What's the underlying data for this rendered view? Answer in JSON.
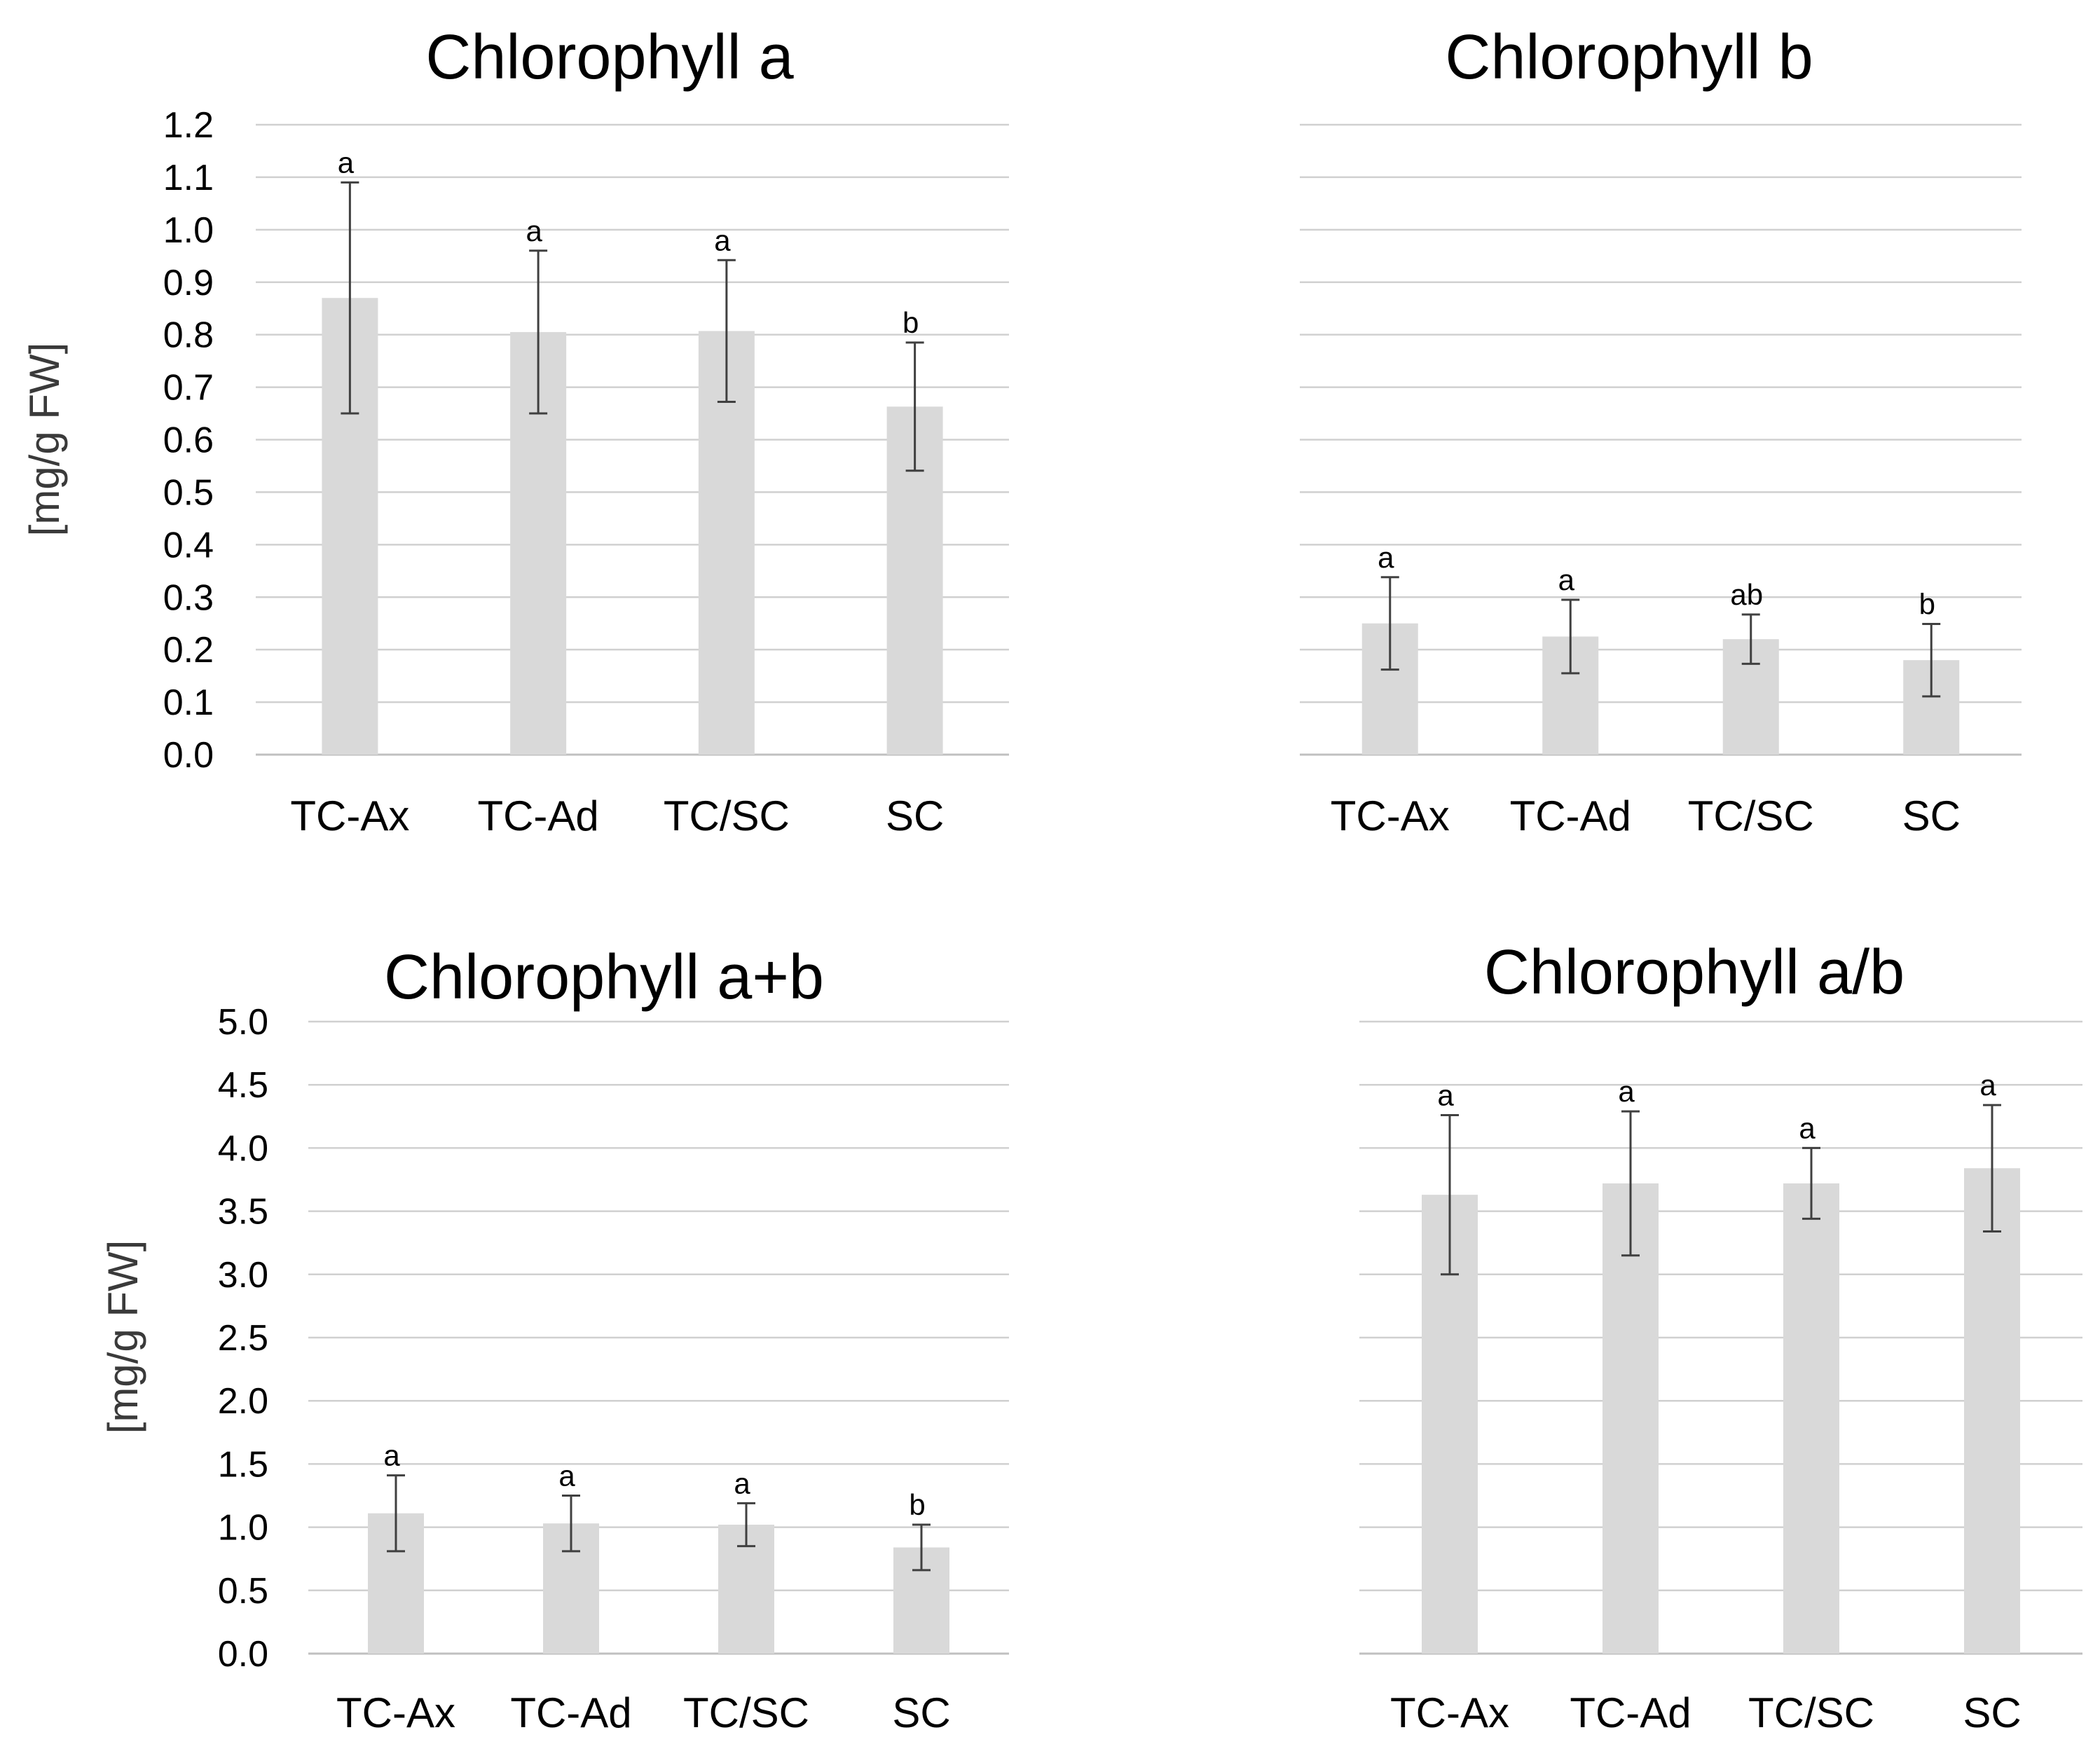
{
  "colors": {
    "bar": "#d9d9d9",
    "gridline": "#d0d0d0",
    "axis": "#c0c0c0",
    "error_bar": "#404040",
    "text": "#000000"
  },
  "chart_data": [
    {
      "id": "chl-a",
      "type": "bar",
      "title": "Chlorophyll a",
      "ylabel": "[mg/g FW]",
      "ylim": [
        0,
        1.2
      ],
      "ticks": [
        "0.0",
        "0.1",
        "0.2",
        "0.3",
        "0.4",
        "0.5",
        "0.6",
        "0.7",
        "0.8",
        "0.9",
        "1.0",
        "1.1",
        "1.2"
      ],
      "tick_values": [
        0,
        0.1,
        0.2,
        0.3,
        0.4,
        0.5,
        0.6,
        0.7,
        0.8,
        0.9,
        1.0,
        1.1,
        1.2
      ],
      "categories": [
        "TC-Ax",
        "TC-Ad",
        "TC/SC",
        "SC"
      ],
      "values": [
        0.87,
        0.805,
        0.807,
        0.663
      ],
      "errors": [
        0.22,
        0.155,
        0.135,
        0.122
      ],
      "significance": [
        "a",
        "a",
        "a",
        "b"
      ]
    },
    {
      "id": "chl-b",
      "type": "bar",
      "title": "Chlorophyll b",
      "ylabel": "",
      "ylim": [
        0,
        1.2
      ],
      "ticks": [],
      "tick_values": [
        0,
        0.1,
        0.2,
        0.3,
        0.4,
        0.5,
        0.6,
        0.7,
        0.8,
        0.9,
        1.0,
        1.1,
        1.2
      ],
      "categories": [
        "TC-Ax",
        "TC-Ad",
        "TC/SC",
        "SC"
      ],
      "values": [
        0.25,
        0.225,
        0.22,
        0.18
      ],
      "errors": [
        0.088,
        0.07,
        0.047,
        0.069
      ],
      "significance": [
        "a",
        "a",
        "ab",
        "b"
      ]
    },
    {
      "id": "chl-ab-sum",
      "type": "bar",
      "title": "Chlorophyll a+b",
      "ylabel": "[mg/g FW]",
      "ylim": [
        0,
        5.0
      ],
      "ticks": [
        "0.0",
        "0.5",
        "1.0",
        "1.5",
        "2.0",
        "2.5",
        "3.0",
        "3.5",
        "4.0",
        "4.5",
        "5.0"
      ],
      "tick_values": [
        0,
        0.5,
        1.0,
        1.5,
        2.0,
        2.5,
        3.0,
        3.5,
        4.0,
        4.5,
        5.0
      ],
      "categories": [
        "TC-Ax",
        "TC-Ad",
        "TC/SC",
        "SC"
      ],
      "values": [
        1.11,
        1.03,
        1.02,
        0.84
      ],
      "errors": [
        0.3,
        0.22,
        0.17,
        0.18
      ],
      "significance": [
        "a",
        "a",
        "a",
        "b"
      ]
    },
    {
      "id": "chl-ab-ratio",
      "type": "bar",
      "title": "Chlorophyll a/b",
      "ylabel": "",
      "ylim": [
        0,
        5.0
      ],
      "ticks": [],
      "tick_values": [
        0,
        0.5,
        1.0,
        1.5,
        2.0,
        2.5,
        3.0,
        3.5,
        4.0,
        4.5,
        5.0
      ],
      "categories": [
        "TC-Ax",
        "TC-Ad",
        "TC/SC",
        "SC"
      ],
      "values": [
        3.63,
        3.72,
        3.72,
        3.84
      ],
      "errors": [
        0.63,
        0.57,
        0.28,
        0.5
      ],
      "significance": [
        "a",
        "a",
        "a",
        "a"
      ]
    }
  ]
}
